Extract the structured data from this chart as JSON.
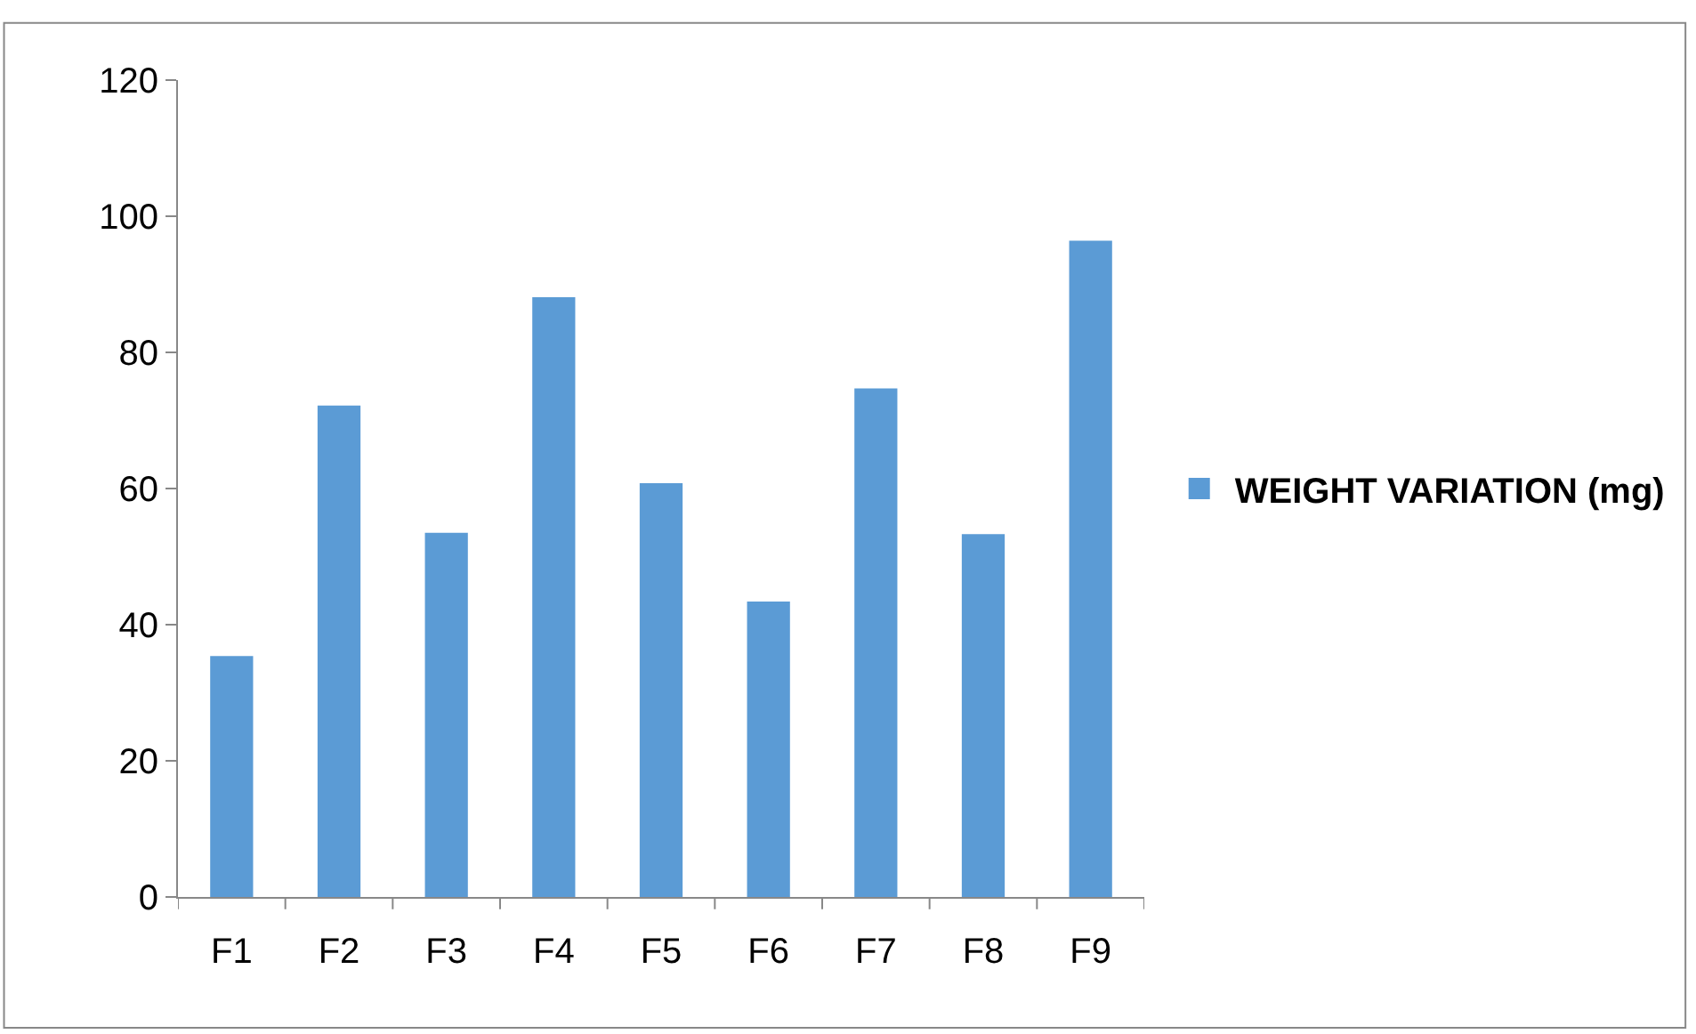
{
  "chart_data": {
    "type": "bar",
    "categories": [
      "F1",
      "F2",
      "F3",
      "F4",
      "F5",
      "F6",
      "F7",
      "F8",
      "F9"
    ],
    "series": [
      {
        "name": "WEIGHT VARIATION (mg)",
        "color": "#5b9bd5",
        "values": [
          35.4,
          72.2,
          53.5,
          88.1,
          60.8,
          43.4,
          74.7,
          53.3,
          96.4
        ]
      }
    ],
    "ylim": [
      0,
      120
    ],
    "yticks": [
      0,
      20,
      40,
      60,
      80,
      100,
      120
    ],
    "legend": "right"
  }
}
